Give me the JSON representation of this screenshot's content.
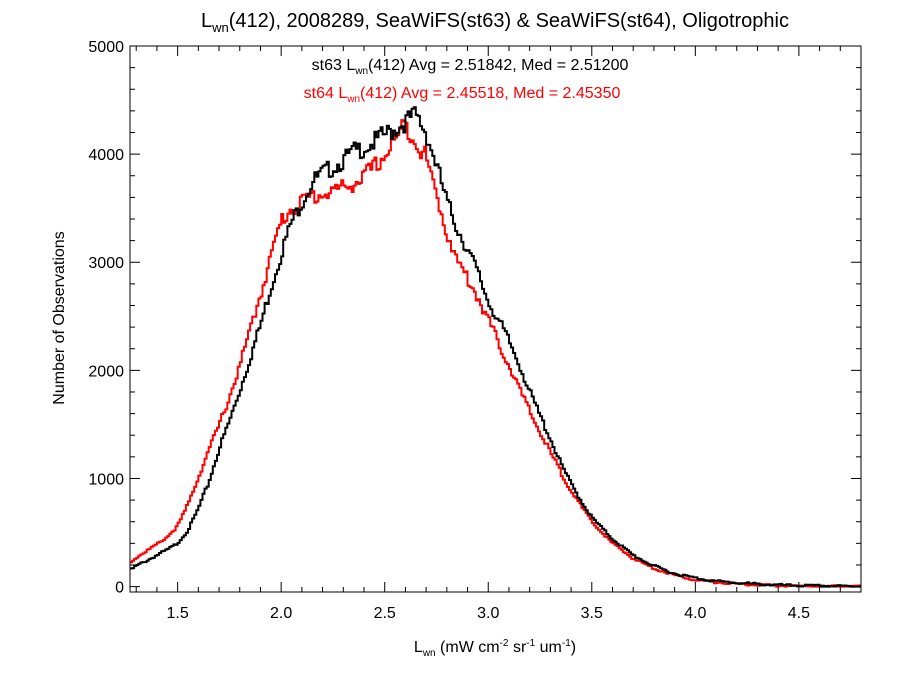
{
  "chart_data": {
    "type": "line",
    "title_main": "L",
    "title_sub": "wn",
    "title_rest": "(412), 2008289, SeaWiFS(st63) & SeaWiFS(st64), Oligotrophic",
    "xlabel_main": "L",
    "xlabel_sub": "wn",
    "xlabel_p1": " (mW cm",
    "xlabel_sup1": "-2",
    "xlabel_p2": " sr",
    "xlabel_sup2": "-1",
    "xlabel_p3": " um",
    "xlabel_sup3": "-1",
    "xlabel_p4": ")",
    "ylabel": "Number of Observations",
    "xlim": [
      1.27,
      4.8
    ],
    "ylim": [
      -50,
      5000
    ],
    "x_ticks": [
      1.5,
      2.0,
      2.5,
      3.0,
      3.5,
      4.0,
      4.5
    ],
    "x_tick_labels": [
      "1.5",
      "2.0",
      "2.5",
      "3.0",
      "3.5",
      "4.0",
      "4.5"
    ],
    "y_ticks": [
      0,
      1000,
      2000,
      3000,
      4000,
      5000
    ],
    "y_tick_labels": [
      "0",
      "1000",
      "2000",
      "3000",
      "4000",
      "5000"
    ],
    "grid": false,
    "series": [
      {
        "color": "#000000",
        "x": [
          1.27,
          1.3,
          1.35,
          1.4,
          1.45,
          1.5,
          1.55,
          1.6,
          1.65,
          1.7,
          1.75,
          1.8,
          1.85,
          1.9,
          1.95,
          2.0,
          2.05,
          2.1,
          2.15,
          2.2,
          2.25,
          2.3,
          2.35,
          2.4,
          2.45,
          2.5,
          2.55,
          2.6,
          2.65,
          2.7,
          2.75,
          2.8,
          2.85,
          2.9,
          2.95,
          3.0,
          3.05,
          3.1,
          3.15,
          3.2,
          3.25,
          3.3,
          3.35,
          3.4,
          3.45,
          3.5,
          3.6,
          3.7,
          3.8,
          3.9,
          4.0,
          4.1,
          4.2,
          4.3,
          4.4,
          4.5,
          4.6,
          4.7,
          4.8
        ],
        "y": [
          150,
          190,
          240,
          290,
          340,
          400,
          520,
          720,
          960,
          1270,
          1530,
          1810,
          2110,
          2420,
          2760,
          3080,
          3370,
          3560,
          3740,
          3820,
          3880,
          3940,
          4020,
          4060,
          4110,
          4180,
          4230,
          4300,
          4360,
          4200,
          3900,
          3560,
          3320,
          3120,
          2900,
          2640,
          2460,
          2270,
          2060,
          1800,
          1580,
          1370,
          1140,
          950,
          790,
          640,
          440,
          290,
          190,
          120,
          80,
          50,
          35,
          22,
          14,
          9,
          6,
          4,
          2
        ],
        "avg_label_pre": "st63 L",
        "avg_label_sub": "wn",
        "avg_label_post": "(412) Avg = 2.51842, Med = 2.51200"
      },
      {
        "color": "#ff0000",
        "x": [
          1.27,
          1.3,
          1.35,
          1.4,
          1.45,
          1.5,
          1.55,
          1.6,
          1.65,
          1.7,
          1.75,
          1.8,
          1.85,
          1.9,
          1.95,
          2.0,
          2.05,
          2.1,
          2.15,
          2.2,
          2.25,
          2.3,
          2.35,
          2.4,
          2.45,
          2.5,
          2.55,
          2.6,
          2.65,
          2.7,
          2.75,
          2.8,
          2.85,
          2.9,
          2.95,
          3.0,
          3.05,
          3.1,
          3.15,
          3.2,
          3.25,
          3.3,
          3.35,
          3.4,
          3.45,
          3.5,
          3.6,
          3.7,
          3.8,
          3.9,
          4.0,
          4.1,
          4.2,
          4.3,
          4.4,
          4.5,
          4.6,
          4.7,
          4.8
        ],
        "y": [
          220,
          270,
          330,
          390,
          460,
          560,
          760,
          1010,
          1260,
          1490,
          1750,
          2040,
          2370,
          2700,
          3050,
          3380,
          3500,
          3560,
          3610,
          3630,
          3660,
          3690,
          3730,
          3790,
          3880,
          3990,
          4120,
          4280,
          4120,
          3970,
          3620,
          3280,
          3010,
          2850,
          2680,
          2470,
          2250,
          2050,
          1830,
          1620,
          1430,
          1240,
          1060,
          890,
          740,
          600,
          400,
          260,
          170,
          105,
          65,
          40,
          25,
          15,
          8,
          5,
          3,
          2,
          1
        ],
        "avg_label_pre": "st64 L",
        "avg_label_sub": "wn",
        "avg_label_post": "(412) Avg = 2.45518, Med = 2.45350"
      }
    ]
  }
}
